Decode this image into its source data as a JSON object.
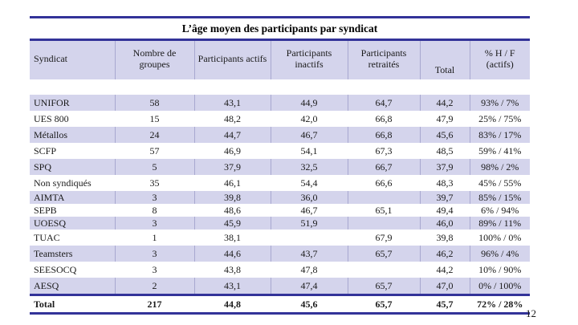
{
  "slide": {
    "page_number": "12"
  },
  "table": {
    "title": "L’âge moyen des participants par syndicat",
    "columns": [
      "Syndicat",
      "Nombre de groupes",
      "Participants actifs",
      "Participants inactifs",
      "Participants retraités",
      "Total",
      "% H / F (actifs)"
    ],
    "rows": [
      {
        "syndicat": "UNIFOR",
        "groupes": "58",
        "actifs": "43,1",
        "inactifs": "44,9",
        "retraites": "64,7",
        "total": "44,2",
        "hf": "93% / 7%",
        "grouped": false,
        "is_total": false
      },
      {
        "syndicat": "UES 800",
        "groupes": "15",
        "actifs": "48,2",
        "inactifs": "42,0",
        "retraites": "66,8",
        "total": "47,9",
        "hf": "25% / 75%",
        "grouped": false,
        "is_total": false
      },
      {
        "syndicat": "Métallos",
        "groupes": "24",
        "actifs": "44,7",
        "inactifs": "46,7",
        "retraites": "66,8",
        "total": "45,6",
        "hf": "83% / 17%",
        "grouped": false,
        "is_total": false
      },
      {
        "syndicat": "SCFP",
        "groupes": "57",
        "actifs": "46,9",
        "inactifs": "54,1",
        "retraites": "67,3",
        "total": "48,5",
        "hf": "59% / 41%",
        "grouped": false,
        "is_total": false
      },
      {
        "syndicat": "SPQ",
        "groupes": "5",
        "actifs": "37,9",
        "inactifs": "32,5",
        "retraites": "66,7",
        "total": "37,9",
        "hf": "98% / 2%",
        "grouped": false,
        "is_total": false
      },
      {
        "syndicat": "Non syndiqués",
        "groupes": "35",
        "actifs": "46,1",
        "inactifs": "54,4",
        "retraites": "66,6",
        "total": "48,3",
        "hf": "45% / 55%",
        "grouped": false,
        "is_total": false
      },
      {
        "syndicat": "AIMTA",
        "groupes": "3",
        "actifs": "39,8",
        "inactifs": "36,0",
        "retraites": "",
        "total": "39,7",
        "hf": "85% / 15%",
        "grouped": true,
        "is_total": false
      },
      {
        "syndicat": "SEPB",
        "groupes": "8",
        "actifs": "48,6",
        "inactifs": "46,7",
        "retraites": "65,1",
        "total": "49,4",
        "hf": "6% / 94%",
        "grouped": true,
        "is_total": false
      },
      {
        "syndicat": "UOESQ",
        "groupes": "3",
        "actifs": "45,9",
        "inactifs": "51,9",
        "retraites": "",
        "total": "46,0",
        "hf": "89% / 11%",
        "grouped": true,
        "is_total": false
      },
      {
        "syndicat": "TUAC",
        "groupes": "1",
        "actifs": "38,1",
        "inactifs": "",
        "retraites": "67,9",
        "total": "39,8",
        "hf": "100% / 0%",
        "grouped": false,
        "is_total": false
      },
      {
        "syndicat": "Teamsters",
        "groupes": "3",
        "actifs": "44,6",
        "inactifs": "43,7",
        "retraites": "65,7",
        "total": "46,2",
        "hf": "96% / 4%",
        "grouped": false,
        "is_total": false
      },
      {
        "syndicat": "SEESOCQ",
        "groupes": "3",
        "actifs": "43,8",
        "inactifs": "47,8",
        "retraites": "",
        "total": "44,2",
        "hf": "10% / 90%",
        "grouped": false,
        "is_total": false
      },
      {
        "syndicat": "AESQ",
        "groupes": "2",
        "actifs": "43,1",
        "inactifs": "47,4",
        "retraites": "65,7",
        "total": "47,0",
        "hf": "0% / 100%",
        "grouped": false,
        "is_total": false
      },
      {
        "syndicat": "Total",
        "groupes": "217",
        "actifs": "44,8",
        "inactifs": "45,6",
        "retraites": "65,7",
        "total": "45,7",
        "hf": "72% / 28%",
        "grouped": false,
        "is_total": true
      }
    ],
    "colors": {
      "accent_rule": "#333399",
      "row_shade": "#d4d4ec",
      "cell_separator": "#a8a8d0"
    }
  }
}
